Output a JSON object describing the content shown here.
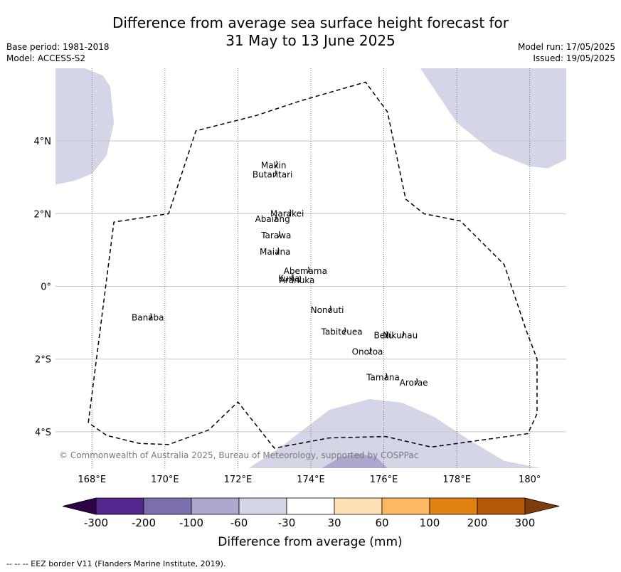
{
  "title_line1": "Difference from average sea surface height forecast for",
  "title_line2": "31 May to 13 June 2025",
  "base_period": "Base period: 1981-2018",
  "model": "Model: ACCESS-S2",
  "model_run": "Model run: 17/05/2025",
  "issued": "Issued: 19/05/2025",
  "copyright": "© Commonwealth of Australia 2025, Bureau of Meteorology, supported by COSPPac",
  "footnote": "-- -- -- EEZ border V11 (Flanders Marine Institute, 2019).",
  "map": {
    "lon_range": [
      167,
      181
    ],
    "lat_range": [
      -5,
      6
    ],
    "lon_ticks": [
      {
        "value": 168,
        "label": "168°E"
      },
      {
        "value": 170,
        "label": "170°E"
      },
      {
        "value": 172,
        "label": "172°E"
      },
      {
        "value": 174,
        "label": "174°E"
      },
      {
        "value": 176,
        "label": "176°E"
      },
      {
        "value": 178,
        "label": "178°E"
      },
      {
        "value": 180,
        "label": "180°"
      }
    ],
    "lat_ticks": [
      {
        "value": 4,
        "label": "4°N"
      },
      {
        "value": 2,
        "label": "2°N"
      },
      {
        "value": 0,
        "label": "0°"
      },
      {
        "value": -2,
        "label": "2°S"
      },
      {
        "value": -4,
        "label": "4°S"
      }
    ],
    "islands": [
      {
        "name": "Makin",
        "lon": 172.98,
        "lat": 3.33
      },
      {
        "name": "Butaritari",
        "lon": 172.95,
        "lat": 3.07
      },
      {
        "name": "Marakei",
        "lon": 173.35,
        "lat": 2.0
      },
      {
        "name": "Abaiang",
        "lon": 172.95,
        "lat": 1.85
      },
      {
        "name": "Tarawa",
        "lon": 173.05,
        "lat": 1.4
      },
      {
        "name": "Maiana",
        "lon": 173.02,
        "lat": 0.95
      },
      {
        "name": "Abemama",
        "lon": 173.85,
        "lat": 0.42
      },
      {
        "name": "Kuria",
        "lon": 173.4,
        "lat": 0.22
      },
      {
        "name": "Aranuka",
        "lon": 173.62,
        "lat": 0.17
      },
      {
        "name": "Nonouti",
        "lon": 174.45,
        "lat": -0.65
      },
      {
        "name": "Banaba",
        "lon": 169.53,
        "lat": -0.86
      },
      {
        "name": "Tabiteuea",
        "lon": 174.85,
        "lat": -1.25
      },
      {
        "name": "Beru",
        "lon": 176.0,
        "lat": -1.35
      },
      {
        "name": "Nikunau",
        "lon": 176.45,
        "lat": -1.35
      },
      {
        "name": "Onotoa",
        "lon": 175.55,
        "lat": -1.8
      },
      {
        "name": "Tamana",
        "lon": 175.98,
        "lat": -2.5
      },
      {
        "name": "Arorae",
        "lon": 176.82,
        "lat": -2.65
      }
    ],
    "eez_border": [
      [
        167.9,
        -3.75
      ],
      [
        168.6,
        1.77
      ],
      [
        170.1,
        2.0
      ],
      [
        170.85,
        4.28
      ],
      [
        172.5,
        4.7
      ],
      [
        173.7,
        5.1
      ],
      [
        175.5,
        5.62
      ],
      [
        176.1,
        4.8
      ],
      [
        176.6,
        2.4
      ],
      [
        177.1,
        2.0
      ],
      [
        178.1,
        1.8
      ],
      [
        179.3,
        0.6
      ],
      [
        179.9,
        -1.2
      ],
      [
        180.2,
        -2.0
      ],
      [
        180.2,
        -3.5
      ],
      [
        179.95,
        -4.05
      ],
      [
        177.3,
        -4.42
      ],
      [
        176.05,
        -4.13
      ],
      [
        174.5,
        -4.17
      ],
      [
        173.0,
        -4.45
      ],
      [
        172.0,
        -3.18
      ],
      [
        171.2,
        -3.95
      ],
      [
        170.1,
        -4.35
      ],
      [
        169.3,
        -4.32
      ],
      [
        168.4,
        -4.1
      ],
      [
        167.9,
        -3.75
      ]
    ],
    "anomaly_regions": [
      {
        "color": "#d5d5e8",
        "points": [
          [
            167,
            2.8
          ],
          [
            167.5,
            2.9
          ],
          [
            168.0,
            3.1
          ],
          [
            168.4,
            3.6
          ],
          [
            168.6,
            4.5
          ],
          [
            168.5,
            5.5
          ],
          [
            168.3,
            5.8
          ],
          [
            167.8,
            6
          ],
          [
            167,
            6
          ]
        ]
      },
      {
        "color": "#d5d5e8",
        "points": [
          [
            177.0,
            6
          ],
          [
            178.0,
            4.5
          ],
          [
            179.0,
            3.7
          ],
          [
            180.0,
            3.3
          ],
          [
            180.5,
            3.25
          ],
          [
            181,
            3.5
          ],
          [
            181,
            6
          ]
        ]
      },
      {
        "color": "#d5d5e8",
        "points": [
          [
            172.3,
            -5
          ],
          [
            173.2,
            -4.4
          ],
          [
            174.5,
            -3.4
          ],
          [
            175.6,
            -3.1
          ],
          [
            176.5,
            -3.2
          ],
          [
            177.4,
            -3.6
          ],
          [
            178.3,
            -4.2
          ],
          [
            179.3,
            -4.8
          ],
          [
            180.3,
            -5
          ]
        ]
      },
      {
        "color": "#aba7cf",
        "points": [
          [
            174.3,
            -5
          ],
          [
            174.8,
            -4.7
          ],
          [
            175.3,
            -4.6
          ],
          [
            175.8,
            -4.7
          ],
          [
            176.1,
            -5
          ]
        ]
      }
    ]
  },
  "colorbar": {
    "label": "Difference from average (mm)",
    "tick_labels": [
      "-300",
      "-200",
      "-100",
      "-60",
      "-30",
      "30",
      "60",
      "100",
      "200",
      "300"
    ],
    "under_color": "#2d0546",
    "over_color": "#7f3c0a",
    "colors": [
      "#54278f",
      "#7d6fad",
      "#aba7cf",
      "#d5d5e8",
      "#ffffff",
      "#fee0b6",
      "#fdb863",
      "#e08214",
      "#b35806"
    ]
  }
}
